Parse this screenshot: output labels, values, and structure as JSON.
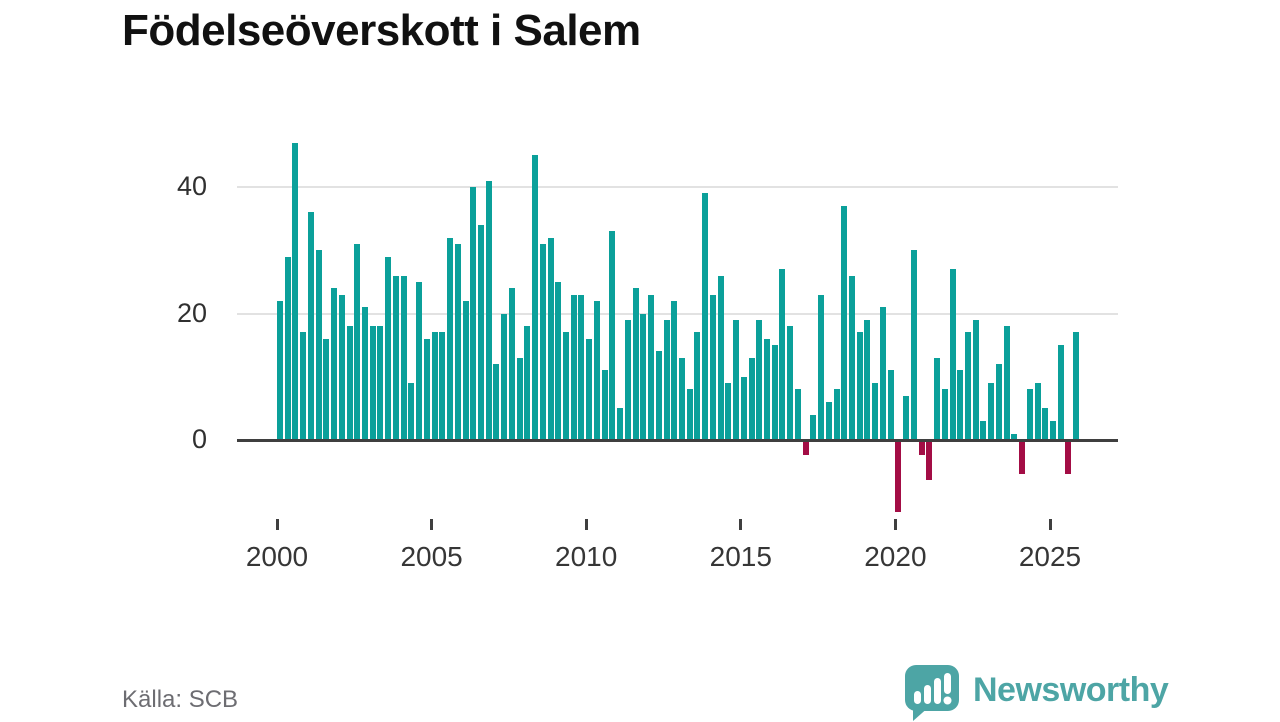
{
  "title": "Födelseöverskott i Salem",
  "source": "Källa: SCB",
  "logo": {
    "brand": "Newsworthy"
  },
  "colors": {
    "positive_bar": "#0ba09a",
    "negative_bar": "#a30d45",
    "gridline": "#e2e2e2",
    "zero_line": "#3f3f3f",
    "logo_teal": "#4da5a5"
  },
  "chart_data": {
    "type": "bar",
    "title": "Födelseöverskott i Salem",
    "frequency": "quarterly",
    "start": "2000 Q1",
    "end": "2025 Q4",
    "values": [
      22,
      29,
      47,
      17,
      36,
      30,
      16,
      24,
      23,
      18,
      31,
      21,
      18,
      18,
      29,
      26,
      26,
      9,
      25,
      16,
      17,
      17,
      32,
      31,
      22,
      40,
      34,
      41,
      12,
      20,
      24,
      13,
      18,
      45,
      31,
      32,
      25,
      17,
      23,
      23,
      16,
      22,
      11,
      33,
      5,
      19,
      24,
      20,
      23,
      14,
      19,
      22,
      13,
      8,
      17,
      39,
      23,
      26,
      9,
      19,
      10,
      13,
      19,
      16,
      15,
      27,
      18,
      8,
      -2,
      4,
      23,
      6,
      8,
      37,
      26,
      17,
      19,
      9,
      21,
      11,
      -11,
      7,
      30,
      -2,
      -6,
      13,
      8,
      27,
      11,
      17,
      19,
      3,
      9,
      12,
      18,
      1,
      -5,
      8,
      9,
      5,
      3,
      15,
      -5,
      17
    ],
    "x_tick_labels": [
      "2000",
      "2005",
      "2010",
      "2015",
      "2020",
      "2025"
    ],
    "y_tick_labels": [
      "0",
      "20",
      "40"
    ],
    "y_tick_values": [
      0,
      20,
      40
    ],
    "ylim": [
      -13,
      49
    ],
    "grid": "horizontal",
    "legend": "none",
    "bar_color_rule": "teal when value >= 0, dark red when value < 0"
  }
}
